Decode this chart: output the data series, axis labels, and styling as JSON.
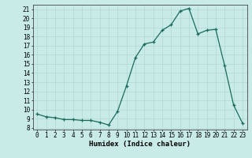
{
  "x": [
    0,
    1,
    2,
    3,
    4,
    5,
    6,
    7,
    8,
    9,
    10,
    11,
    12,
    13,
    14,
    15,
    16,
    17,
    18,
    19,
    20,
    21,
    22,
    23
  ],
  "y": [
    9.5,
    9.2,
    9.1,
    8.9,
    8.9,
    8.8,
    8.8,
    8.6,
    8.3,
    9.8,
    12.6,
    15.7,
    17.2,
    17.4,
    18.7,
    19.3,
    20.8,
    21.1,
    18.3,
    18.7,
    18.8,
    14.8,
    10.5,
    8.5
  ],
  "xlabel": "Humidex (Indice chaleur)",
  "xlim": [
    -0.5,
    23.5
  ],
  "ylim": [
    7.8,
    21.5
  ],
  "yticks": [
    8,
    9,
    10,
    11,
    12,
    13,
    14,
    15,
    16,
    17,
    18,
    19,
    20,
    21
  ],
  "xticks": [
    0,
    1,
    2,
    3,
    4,
    5,
    6,
    7,
    8,
    9,
    10,
    11,
    12,
    13,
    14,
    15,
    16,
    17,
    18,
    19,
    20,
    21,
    22,
    23
  ],
  "line_color": "#1a6b5a",
  "marker": "+",
  "bg_color": "#c8ebe8",
  "grid_color": "#b0d8d4",
  "font_family": "monospace",
  "tick_fontsize": 5.5,
  "xlabel_fontsize": 6.5
}
